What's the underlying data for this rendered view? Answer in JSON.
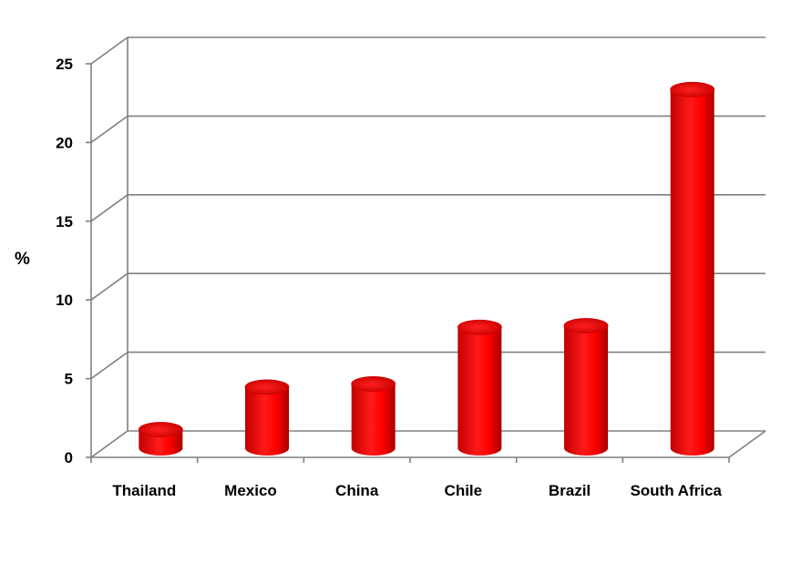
{
  "chart_data": {
    "type": "bar",
    "style": "3d-cylinder",
    "categories": [
      "Thailand",
      "Mexico",
      "China",
      "Chile",
      "Brazil",
      "South Africa"
    ],
    "values": [
      1.3,
      4.0,
      4.2,
      7.8,
      7.9,
      22.9
    ],
    "ylabel": "%",
    "ylim": [
      0,
      25
    ],
    "yticks": [
      "0",
      "5",
      "10",
      "15",
      "20",
      "25"
    ],
    "grid": true,
    "legend": "none",
    "colors": {
      "bar": "#ff0000",
      "bar_dark": "#b00000",
      "grid": "#808080"
    }
  }
}
